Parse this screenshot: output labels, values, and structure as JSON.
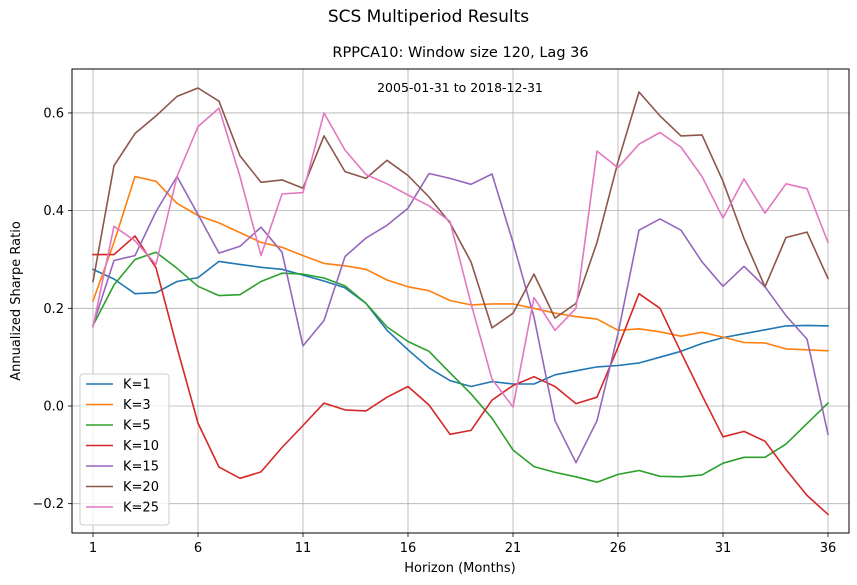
{
  "figure": {
    "suptitle": "SCS Multiperiod Results",
    "title": "RPPCA10: Window size 120, Lag 36",
    "annotation": "2005-01-31 to 2018-12-31"
  },
  "chart_data": {
    "type": "line",
    "title": "RPPCA10: Window size 120, Lag 36",
    "xlabel": "Horizon (Months)",
    "ylabel": "Annualized Sharpe Ratio",
    "xlim": [
      0,
      37
    ],
    "ylim": [
      -0.26,
      0.69
    ],
    "xticks": [
      1,
      6,
      11,
      16,
      21,
      26,
      31,
      36
    ],
    "yticks": [
      -0.2,
      0.0,
      0.2,
      0.4,
      0.6
    ],
    "ytick_labels": [
      "−0.2",
      "0.0",
      "0.2",
      "0.4",
      "0.6"
    ],
    "grid": true,
    "legend_position": "lower-left",
    "x": [
      1,
      2,
      3,
      4,
      5,
      6,
      7,
      8,
      9,
      10,
      11,
      12,
      13,
      14,
      15,
      16,
      17,
      18,
      19,
      20,
      21,
      22,
      23,
      24,
      25,
      26,
      27,
      28,
      29,
      30,
      31,
      32,
      33,
      34,
      35,
      36
    ],
    "series": [
      {
        "name": "K=1",
        "color": "#1f77b4",
        "values": [
          0.28,
          0.26,
          0.23,
          0.232,
          0.255,
          0.263,
          0.296,
          0.29,
          0.284,
          0.28,
          0.268,
          0.256,
          0.242,
          0.21,
          0.155,
          0.115,
          0.078,
          0.052,
          0.04,
          0.05,
          0.045,
          0.045,
          0.064,
          0.072,
          0.08,
          0.083,
          0.088,
          0.1,
          0.112,
          0.128,
          0.14,
          0.148,
          0.156,
          0.164,
          0.165,
          0.164
        ]
      },
      {
        "name": "K=3",
        "color": "#ff7f0e",
        "values": [
          0.215,
          0.335,
          0.47,
          0.46,
          0.415,
          0.39,
          0.375,
          0.355,
          0.335,
          0.325,
          0.308,
          0.292,
          0.287,
          0.28,
          0.258,
          0.244,
          0.236,
          0.216,
          0.207,
          0.209,
          0.209,
          0.2,
          0.19,
          0.183,
          0.178,
          0.155,
          0.158,
          0.152,
          0.143,
          0.151,
          0.141,
          0.13,
          0.129,
          0.117,
          0.115,
          0.113
        ]
      },
      {
        "name": "K=5",
        "color": "#2ca02c",
        "values": [
          0.165,
          0.248,
          0.3,
          0.315,
          0.282,
          0.245,
          0.226,
          0.228,
          0.255,
          0.272,
          0.27,
          0.262,
          0.246,
          0.21,
          0.162,
          0.132,
          0.112,
          0.068,
          0.025,
          -0.025,
          -0.09,
          -0.124,
          -0.136,
          -0.145,
          -0.156,
          -0.14,
          -0.132,
          -0.144,
          -0.145,
          -0.141,
          -0.117,
          -0.105,
          -0.105,
          -0.078,
          -0.036,
          0.006
        ]
      },
      {
        "name": "K=10",
        "color": "#d62728",
        "values": [
          0.31,
          0.31,
          0.348,
          0.283,
          0.12,
          -0.035,
          -0.125,
          -0.148,
          -0.135,
          -0.085,
          -0.04,
          0.006,
          -0.008,
          -0.01,
          0.018,
          0.04,
          0.002,
          -0.058,
          -0.05,
          0.012,
          0.042,
          0.06,
          0.04,
          0.005,
          0.018,
          0.12,
          0.23,
          0.2,
          0.11,
          0.022,
          -0.063,
          -0.052,
          -0.072,
          -0.13,
          -0.183,
          -0.222
        ]
      },
      {
        "name": "K=15",
        "color": "#9467bd",
        "values": [
          0.165,
          0.298,
          0.308,
          0.398,
          0.47,
          0.392,
          0.313,
          0.327,
          0.366,
          0.315,
          0.123,
          0.175,
          0.306,
          0.344,
          0.37,
          0.405,
          0.476,
          0.466,
          0.454,
          0.475,
          0.335,
          0.182,
          -0.03,
          -0.116,
          -0.03,
          0.148,
          0.36,
          0.383,
          0.36,
          0.295,
          0.245,
          0.286,
          0.244,
          0.185,
          0.137,
          -0.058
        ]
      },
      {
        "name": "K=20",
        "color": "#8c564b",
        "values": [
          0.255,
          0.492,
          0.558,
          0.594,
          0.634,
          0.651,
          0.624,
          0.512,
          0.458,
          0.463,
          0.446,
          0.553,
          0.48,
          0.466,
          0.503,
          0.472,
          0.428,
          0.375,
          0.295,
          0.16,
          0.19,
          0.27,
          0.18,
          0.21,
          0.335,
          0.5,
          0.643,
          0.594,
          0.553,
          0.555,
          0.46,
          0.343,
          0.244,
          0.345,
          0.356,
          0.261
        ]
      },
      {
        "name": "K=25",
        "color": "#e377c2",
        "values": [
          0.162,
          0.368,
          0.338,
          0.29,
          0.47,
          0.572,
          0.61,
          0.47,
          0.308,
          0.434,
          0.437,
          0.6,
          0.524,
          0.474,
          0.455,
          0.432,
          0.41,
          0.378,
          0.21,
          0.055,
          -0.002,
          0.222,
          0.155,
          0.2,
          0.522,
          0.488,
          0.536,
          0.56,
          0.53,
          0.47,
          0.385,
          0.465,
          0.395,
          0.455,
          0.445,
          0.335
        ]
      }
    ]
  }
}
